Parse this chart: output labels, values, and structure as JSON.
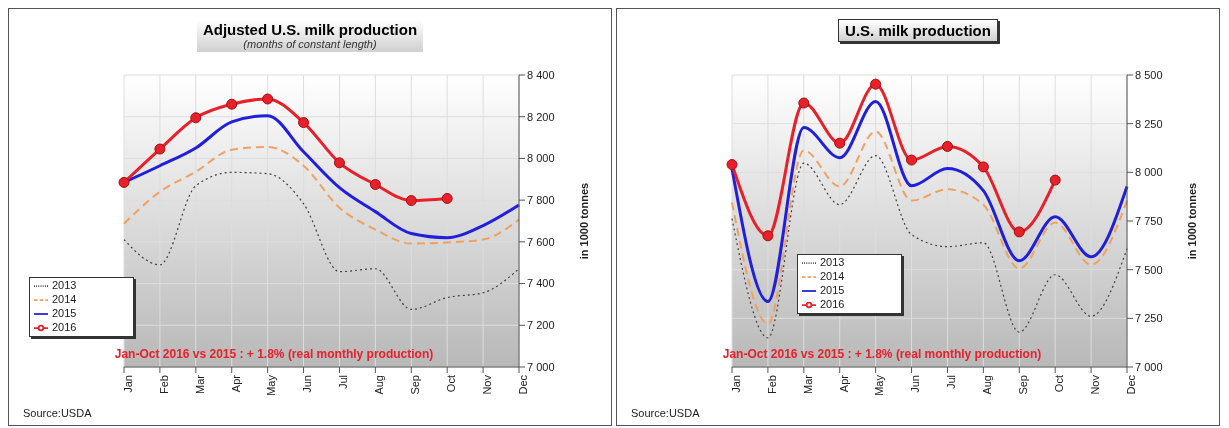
{
  "chart_data": [
    {
      "type": "line",
      "title": "Adjusted U.S. milk production",
      "subtitle": "(months of constant length)",
      "ylabel": "in 1000 tonnes",
      "categories": [
        "Jan",
        "Feb",
        "Mar",
        "Apr",
        "May",
        "Jun",
        "Jul",
        "Aug",
        "Sep",
        "Oct",
        "Nov",
        "Dec"
      ],
      "series": [
        {
          "name": "2013",
          "color": "#404040",
          "line_style": "dotted",
          "marker": "none",
          "values": [
            7611,
            7490,
            7869,
            7933,
            7927,
            7783,
            7457,
            7471,
            7276,
            7333,
            7356,
            7471
          ]
        },
        {
          "name": "2014",
          "color": "#f0a060",
          "line_style": "dashed",
          "marker": "none",
          "values": [
            7687,
            7840,
            7936,
            8042,
            8055,
            7965,
            7764,
            7659,
            7592,
            7597,
            7611,
            7707
          ]
        },
        {
          "name": "2015",
          "color": "#1f1fdc",
          "line_style": "solid",
          "marker": "none",
          "values": [
            7885,
            7965,
            8050,
            8175,
            8205,
            8032,
            7860,
            7745,
            7640,
            7620,
            7678,
            7777
          ]
        },
        {
          "name": "2016",
          "color": "#e8202a",
          "line_style": "solid",
          "marker": "circle",
          "values": [
            7885,
            8045,
            8195,
            8260,
            8285,
            8172,
            7979,
            7875,
            7798,
            7808,
            null,
            null
          ]
        }
      ],
      "ylim": [
        7000,
        8400
      ],
      "yticks": [
        {
          "value": 7000,
          "label": "7 000"
        },
        {
          "value": 7200,
          "label": "7 200"
        },
        {
          "value": 7400,
          "label": "7 400"
        },
        {
          "value": 7600,
          "label": "7 600"
        },
        {
          "value": 7800,
          "label": "7 800"
        },
        {
          "value": 8000,
          "label": "8 000"
        },
        {
          "value": 8200,
          "label": "8 200"
        },
        {
          "value": 8400,
          "label": "8 400"
        }
      ],
      "grid": true,
      "legend": "left",
      "annotations": [
        "Jan-Oct 2016 vs 2015 : + 1.8%  (real monthly production)",
        "Source:USDA"
      ]
    },
    {
      "type": "line",
      "title": "U.S. milk production",
      "ylabel": "in 1000 tonnes",
      "categories": [
        "Jan",
        "Feb",
        "Mar",
        "Apr",
        "May",
        "Jun",
        "Jul",
        "Aug",
        "Sep",
        "Oct",
        "Nov",
        "Dec"
      ],
      "series": [
        {
          "name": "2013",
          "color": "#404040",
          "line_style": "dotted",
          "marker": "none",
          "values": [
            7762,
            7150,
            8047,
            7834,
            8086,
            7680,
            7618,
            7638,
            7179,
            7474,
            7261,
            7608
          ]
        },
        {
          "name": "2014",
          "color": "#f0a060",
          "line_style": "dashed",
          "marker": "none",
          "values": [
            7845,
            7222,
            8113,
            7927,
            8210,
            7855,
            7913,
            7834,
            7505,
            7742,
            7525,
            7855
          ]
        },
        {
          "name": "2015",
          "color": "#1f1fdc",
          "line_style": "solid",
          "marker": "none",
          "values": [
            8020,
            7336,
            8230,
            8075,
            8364,
            7931,
            8020,
            7906,
            7546,
            7772,
            7566,
            7927
          ]
        },
        {
          "name": "2016",
          "color": "#e8202a",
          "line_style": "solid",
          "marker": "circle",
          "values": [
            8040,
            7674,
            8356,
            8150,
            8453,
            8063,
            8133,
            8028,
            7694,
            7960,
            null,
            null
          ]
        }
      ],
      "ylim": [
        7000,
        8500
      ],
      "yticks": [
        {
          "value": 7000,
          "label": "7 000"
        },
        {
          "value": 7250,
          "label": "7 250"
        },
        {
          "value": 7500,
          "label": "7 500"
        },
        {
          "value": 7750,
          "label": "7 750"
        },
        {
          "value": 8000,
          "label": "8 000"
        },
        {
          "value": 8250,
          "label": "8 250"
        },
        {
          "value": 8500,
          "label": "8 500"
        }
      ],
      "grid": true,
      "legend": "left",
      "annotations": [
        "Jan-Oct 2016 vs 2015 : + 1.8%  (real monthly production)",
        "Source:USDA"
      ]
    }
  ]
}
